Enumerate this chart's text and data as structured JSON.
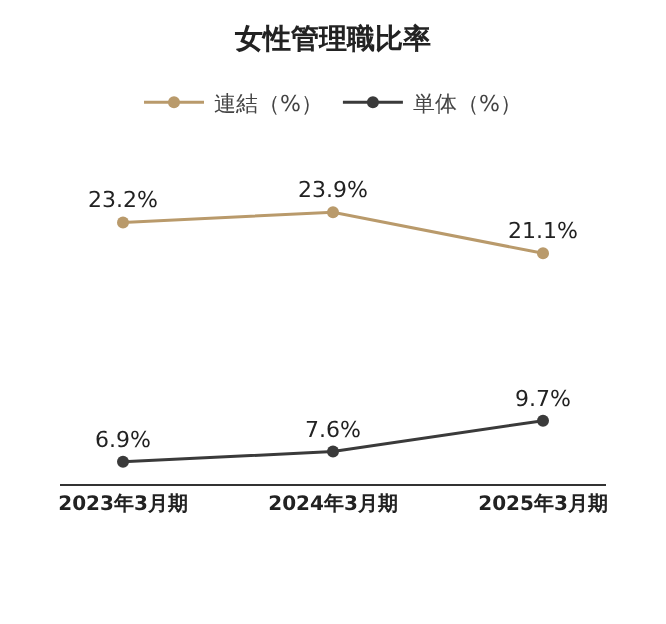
{
  "chart_data": {
    "type": "line",
    "title": "女性管理職比率",
    "categories": [
      "2023年3月期",
      "2024年3月期",
      "2025年3月期"
    ],
    "series": [
      {
        "name": "連結（%）",
        "color": "#b99a6b",
        "values": [
          23.2,
          23.9,
          21.1
        ],
        "value_labels": [
          "23.2%",
          "23.9%",
          "21.1%"
        ]
      },
      {
        "name": "単体（%）",
        "color": "#3a3a3a",
        "values": [
          6.9,
          7.6,
          9.7
        ],
        "value_labels": [
          "6.9%",
          "7.6%",
          "9.7%"
        ]
      }
    ],
    "tick_labels": "x",
    "legend": "top",
    "marker": "circle",
    "line_style": "solid"
  }
}
